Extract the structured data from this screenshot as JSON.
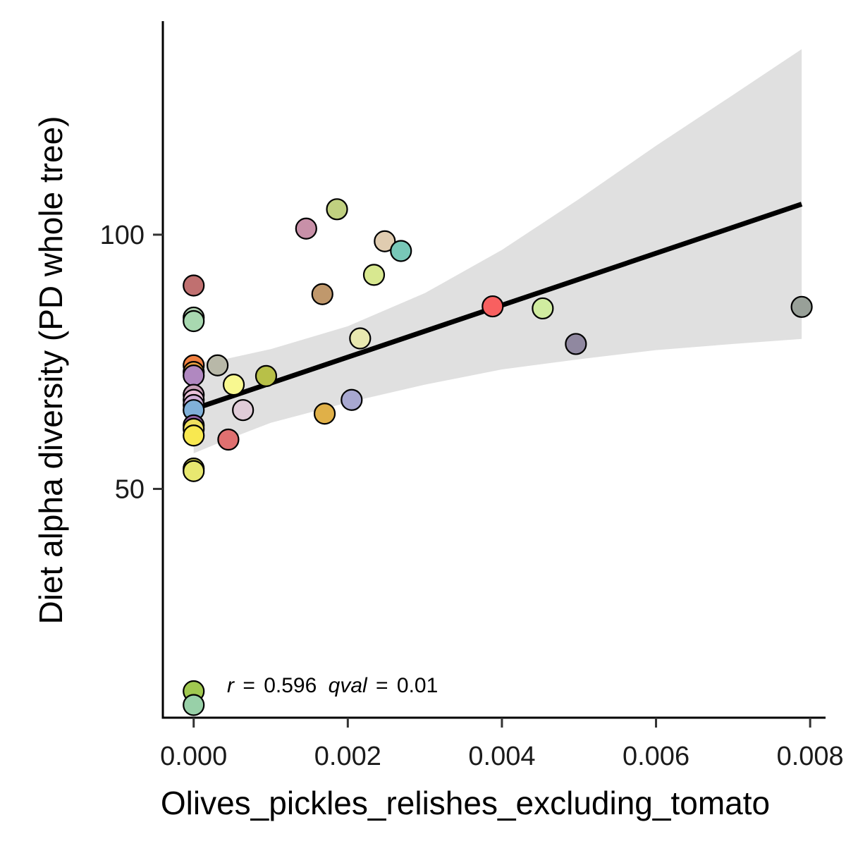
{
  "chart_data": {
    "type": "scatter",
    "xlabel": "Olives_pickles_relishes_excluding_tomato",
    "ylabel": "Diet alpha diversity (PD whole tree)",
    "xlim": [
      -0.0004,
      0.0082
    ],
    "ylim": [
      5,
      142
    ],
    "x_ticks": [
      0,
      0.002,
      0.004,
      0.006,
      0.008
    ],
    "x_tick_labels": [
      "0.000",
      "0.002",
      "0.004",
      "0.006",
      "0.008"
    ],
    "y_ticks": [
      50,
      100
    ],
    "y_tick_labels": [
      "50",
      "100"
    ],
    "grid": false,
    "legend": "none",
    "annotation": {
      "r_label": "r",
      "r_value": "0.596",
      "q_label": "qval",
      "q_value": "0.01",
      "eq": "="
    },
    "regression": {
      "line": {
        "x1": 0.0,
        "y1": 65.7,
        "x2": 0.00789,
        "y2": 106.0
      },
      "ci_upper": [
        [
          0.0,
          74.8
        ],
        [
          0.0004,
          75.5
        ],
        [
          0.001,
          77.5
        ],
        [
          0.002,
          82.0
        ],
        [
          0.003,
          88.5
        ],
        [
          0.004,
          97.0
        ],
        [
          0.005,
          107.0
        ],
        [
          0.006,
          117.5
        ],
        [
          0.007,
          127.5
        ],
        [
          0.00789,
          136.5
        ]
      ],
      "ci_lower": [
        [
          0.0,
          57.0
        ],
        [
          0.0004,
          59.5
        ],
        [
          0.001,
          63.0
        ],
        [
          0.002,
          67.0
        ],
        [
          0.003,
          70.5
        ],
        [
          0.004,
          73.5
        ],
        [
          0.005,
          75.5
        ],
        [
          0.006,
          77.3
        ],
        [
          0.007,
          78.5
        ],
        [
          0.00789,
          79.5
        ]
      ]
    },
    "points": [
      {
        "x": 0.0,
        "y": 90.0,
        "color": "#c07070"
      },
      {
        "x": 0.0,
        "y": 83.7,
        "color": "#b0d0b0"
      },
      {
        "x": 0.0,
        "y": 83.0,
        "color": "#a8d8b0"
      },
      {
        "x": 0.0,
        "y": 74.3,
        "color": "#f08040"
      },
      {
        "x": 0.0,
        "y": 73.0,
        "color": "#e8a040"
      },
      {
        "x": 0.0,
        "y": 72.3,
        "color": "#b088c0"
      },
      {
        "x": 0.0,
        "y": 68.5,
        "color": "#c8a0b8"
      },
      {
        "x": 0.0,
        "y": 67.5,
        "color": "#e8c0d8"
      },
      {
        "x": 0.0,
        "y": 66.5,
        "color": "#d0b0d8"
      },
      {
        "x": 0.0,
        "y": 65.5,
        "color": "#80b0d8"
      },
      {
        "x": 0.0,
        "y": 62.5,
        "color": "#9060a0"
      },
      {
        "x": 0.0,
        "y": 61.8,
        "color": "#f0e060"
      },
      {
        "x": 0.0,
        "y": 60.5,
        "color": "#f8e850"
      },
      {
        "x": 0.0,
        "y": 54.0,
        "color": "#d8d850"
      },
      {
        "x": 0.0,
        "y": 53.5,
        "color": "#e8e870"
      },
      {
        "x": 0.0,
        "y": 10.2,
        "color": "#a0c850"
      },
      {
        "x": 0.0,
        "y": 7.5,
        "color": "#98d0a8"
      },
      {
        "x": 0.00031,
        "y": 74.3,
        "color": "#b8b8a8"
      },
      {
        "x": 0.00045,
        "y": 59.7,
        "color": "#e07070"
      },
      {
        "x": 0.00052,
        "y": 70.5,
        "color": "#f8f890"
      },
      {
        "x": 0.00064,
        "y": 65.5,
        "color": "#e0ccd8"
      },
      {
        "x": 0.00094,
        "y": 72.2,
        "color": "#b8c048"
      },
      {
        "x": 0.00146,
        "y": 101.2,
        "color": "#c890a8"
      },
      {
        "x": 0.00167,
        "y": 88.3,
        "color": "#c0986c"
      },
      {
        "x": 0.0017,
        "y": 64.8,
        "color": "#e0b048"
      },
      {
        "x": 0.00186,
        "y": 105.0,
        "color": "#c0d080"
      },
      {
        "x": 0.00205,
        "y": 67.5,
        "color": "#a8a8d0"
      },
      {
        "x": 0.00216,
        "y": 79.6,
        "color": "#e8e8b0"
      },
      {
        "x": 0.00234,
        "y": 92.1,
        "color": "#d8e890"
      },
      {
        "x": 0.00248,
        "y": 98.7,
        "color": "#e0ccb0"
      },
      {
        "x": 0.00269,
        "y": 96.8,
        "color": "#78c8b8"
      },
      {
        "x": 0.00388,
        "y": 85.9,
        "color": "#f86060"
      },
      {
        "x": 0.00453,
        "y": 85.5,
        "color": "#d0eca0"
      },
      {
        "x": 0.00496,
        "y": 78.5,
        "color": "#9088a0"
      },
      {
        "x": 0.00789,
        "y": 85.8,
        "color": "#98a098"
      }
    ]
  }
}
